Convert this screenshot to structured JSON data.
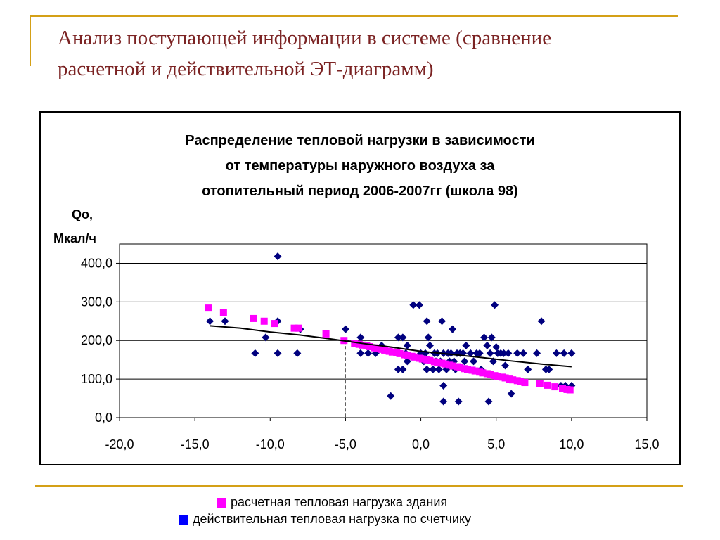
{
  "slide": {
    "title_line1": "Анализ поступающей информации в системе (сравнение",
    "title_line2": "расчетной и действительной ЭТ-диаграмм)"
  },
  "colors": {
    "accent_line": "#d4a017",
    "title_text": "#7b2323",
    "calculated_series": "#ff00ff",
    "actual_series": "#00007f",
    "actual_legend_swatch": "#0000ff",
    "trend_line": "#000000"
  },
  "chart_data": {
    "type": "scatter",
    "title_lines": [
      "Распределение тепловой нагрузки в зависимости",
      "от температуры наружного воздуха за",
      "отопительный период 2006-2007гг (школа 98)"
    ],
    "ylabel_line1": "Qo,",
    "ylabel_line2": "Мкал/ч",
    "xlim": [
      -20,
      15
    ],
    "ylim": [
      0,
      450
    ],
    "x_ticks": [
      "-20,0",
      "-15,0",
      "-10,0",
      "-5,0",
      "0,0",
      "5,0",
      "10,0",
      "15,0"
    ],
    "y_ticks": [
      "0,0",
      "100,0",
      "200,0",
      "300,0",
      "400,0"
    ],
    "grid": "horizontal",
    "reference_line_x": -5,
    "series": [
      {
        "name": "расчетная тепловая нагрузка здания",
        "marker": "square",
        "points": [
          [
            -14.1,
            284
          ],
          [
            -13.1,
            272
          ],
          [
            -11.1,
            257
          ],
          [
            -10.4,
            250
          ],
          [
            -9.7,
            244
          ],
          [
            -8.4,
            232
          ],
          [
            -8.1,
            232
          ],
          [
            -6.3,
            217
          ],
          [
            -5.1,
            200
          ],
          [
            -4.4,
            193
          ],
          [
            -4.1,
            190
          ],
          [
            -3.9,
            188
          ],
          [
            -3.6,
            186
          ],
          [
            -3.4,
            184
          ],
          [
            -3.1,
            181
          ],
          [
            -2.9,
            179
          ],
          [
            -2.6,
            177
          ],
          [
            -2.4,
            175
          ],
          [
            -2.1,
            172
          ],
          [
            -1.9,
            170
          ],
          [
            -1.6,
            168
          ],
          [
            -1.4,
            166
          ],
          [
            -1.1,
            163
          ],
          [
            -0.9,
            161
          ],
          [
            -0.6,
            159
          ],
          [
            -0.4,
            157
          ],
          [
            -0.1,
            154
          ],
          [
            0.1,
            152
          ],
          [
            0.4,
            150
          ],
          [
            0.6,
            148
          ],
          [
            0.9,
            145
          ],
          [
            1.1,
            143
          ],
          [
            1.4,
            141
          ],
          [
            1.6,
            139
          ],
          [
            1.9,
            136
          ],
          [
            2.1,
            134
          ],
          [
            2.4,
            132
          ],
          [
            2.6,
            130
          ],
          [
            2.9,
            127
          ],
          [
            3.1,
            125
          ],
          [
            3.4,
            123
          ],
          [
            3.6,
            121
          ],
          [
            3.9,
            118
          ],
          [
            4.1,
            116
          ],
          [
            4.4,
            114
          ],
          [
            4.6,
            112
          ],
          [
            4.9,
            109
          ],
          [
            5.1,
            107
          ],
          [
            5.4,
            105
          ],
          [
            5.6,
            103
          ],
          [
            5.9,
            100
          ],
          [
            6.1,
            98
          ],
          [
            6.4,
            96
          ],
          [
            6.6,
            94
          ],
          [
            6.9,
            91
          ],
          [
            7.9,
            88
          ],
          [
            8.4,
            84
          ],
          [
            8.9,
            80
          ],
          [
            9.4,
            76
          ],
          [
            9.7,
            73
          ],
          [
            9.9,
            72
          ]
        ]
      },
      {
        "name": "действительная тепловая нагрузка по счетчику",
        "marker": "diamond",
        "points": [
          [
            -14,
            250
          ],
          [
            -13,
            250
          ],
          [
            -11,
            167
          ],
          [
            -10.3,
            208
          ],
          [
            -9.5,
            418
          ],
          [
            -9.5,
            250
          ],
          [
            -9.5,
            167
          ],
          [
            -8.2,
            167
          ],
          [
            -8,
            229
          ],
          [
            -5,
            229
          ],
          [
            -4,
            208
          ],
          [
            -4,
            167
          ],
          [
            -3.5,
            167
          ],
          [
            -3,
            167
          ],
          [
            -2.6,
            187
          ],
          [
            -2,
            56
          ],
          [
            -1.5,
            208
          ],
          [
            -1.5,
            125
          ],
          [
            -1.2,
            208
          ],
          [
            -1.2,
            125
          ],
          [
            -1,
            167
          ],
          [
            -0.9,
            187
          ],
          [
            -0.9,
            146
          ],
          [
            -0.5,
            292
          ],
          [
            -0.1,
            292
          ],
          [
            0,
            167
          ],
          [
            0.2,
            146
          ],
          [
            0.3,
            167
          ],
          [
            0.4,
            250
          ],
          [
            0.4,
            125
          ],
          [
            0.5,
            208
          ],
          [
            0.6,
            187
          ],
          [
            0.8,
            125
          ],
          [
            0.9,
            167
          ],
          [
            1,
            146
          ],
          [
            1.1,
            167
          ],
          [
            1.2,
            125
          ],
          [
            1.3,
            146
          ],
          [
            1.4,
            250
          ],
          [
            1.5,
            167
          ],
          [
            1.5,
            83
          ],
          [
            1.5,
            42
          ],
          [
            1.7,
            125
          ],
          [
            1.8,
            167
          ],
          [
            1.9,
            146
          ],
          [
            2,
            167
          ],
          [
            2.1,
            229
          ],
          [
            2.2,
            146
          ],
          [
            2.3,
            125
          ],
          [
            2.4,
            167
          ],
          [
            2.5,
            42
          ],
          [
            2.6,
            167
          ],
          [
            2.8,
            167
          ],
          [
            2.9,
            146
          ],
          [
            3,
            187
          ],
          [
            3.1,
            125
          ],
          [
            3.3,
            167
          ],
          [
            3.5,
            146
          ],
          [
            3.7,
            167
          ],
          [
            3.9,
            167
          ],
          [
            4,
            125
          ],
          [
            4.2,
            208
          ],
          [
            4.4,
            187
          ],
          [
            4.5,
            42
          ],
          [
            4.6,
            167
          ],
          [
            4.7,
            208
          ],
          [
            4.8,
            146
          ],
          [
            4.9,
            292
          ],
          [
            5,
            183
          ],
          [
            5.1,
            167
          ],
          [
            5.3,
            167
          ],
          [
            5.5,
            167
          ],
          [
            5.6,
            135
          ],
          [
            5.8,
            167
          ],
          [
            6,
            62
          ],
          [
            6.4,
            167
          ],
          [
            6.8,
            167
          ],
          [
            7.1,
            125
          ],
          [
            7.7,
            167
          ],
          [
            8,
            250
          ],
          [
            8.3,
            125
          ],
          [
            8.5,
            125
          ],
          [
            9,
            167
          ],
          [
            9.3,
            83
          ],
          [
            9.5,
            167
          ],
          [
            9.6,
            83
          ],
          [
            10,
            167
          ],
          [
            10,
            83
          ]
        ]
      }
    ],
    "trend": {
      "type": "line",
      "points": [
        [
          -14,
          238
        ],
        [
          -12,
          232
        ],
        [
          -10,
          222
        ],
        [
          -8,
          214
        ],
        [
          -6,
          204
        ],
        [
          -4,
          193
        ],
        [
          -2,
          183
        ],
        [
          0,
          172
        ],
        [
          2,
          164
        ],
        [
          4,
          156
        ],
        [
          6,
          147
        ],
        [
          8,
          139
        ],
        [
          10,
          132
        ]
      ]
    },
    "legend": {
      "placement": "bottom-center",
      "items": [
        {
          "label": "расчетная тепловая нагрузка здания",
          "color": "#ff00ff"
        },
        {
          "label": "действительная тепловая нагрузка по счетчику",
          "color": "#0000ff"
        }
      ]
    }
  }
}
